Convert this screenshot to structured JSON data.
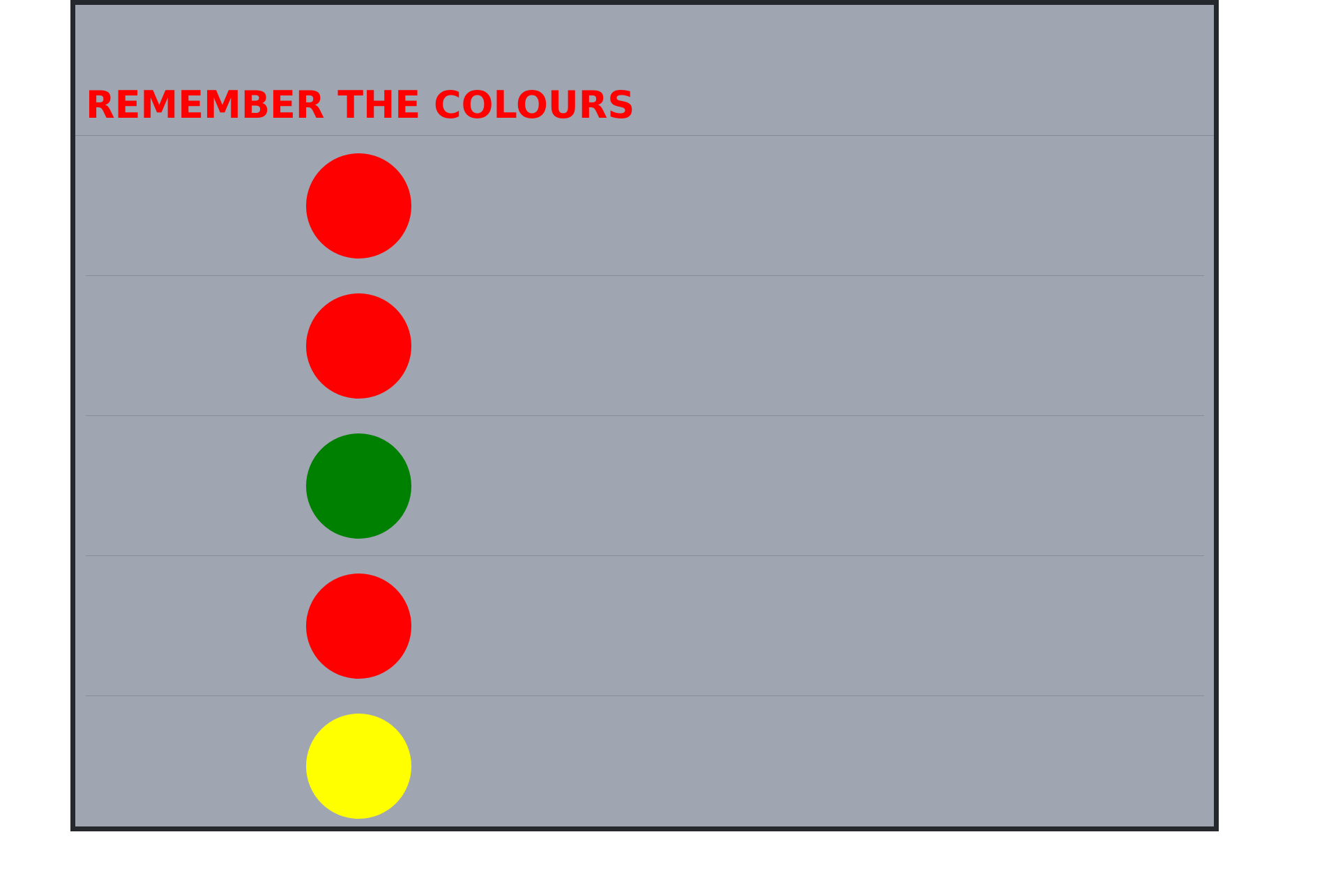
{
  "title": {
    "text": "REMEMBER THE COLOURS",
    "color": "#ff0000"
  },
  "colours": [
    {
      "name": "red",
      "hex": "#ff0000"
    },
    {
      "name": "red",
      "hex": "#ff0000"
    },
    {
      "name": "green",
      "hex": "#008000"
    },
    {
      "name": "red",
      "hex": "#ff0000"
    },
    {
      "name": "yellow",
      "hex": "#ffff00"
    }
  ],
  "theme": {
    "panel_background": "#a0a6b1",
    "panel_border": "#25282d"
  }
}
